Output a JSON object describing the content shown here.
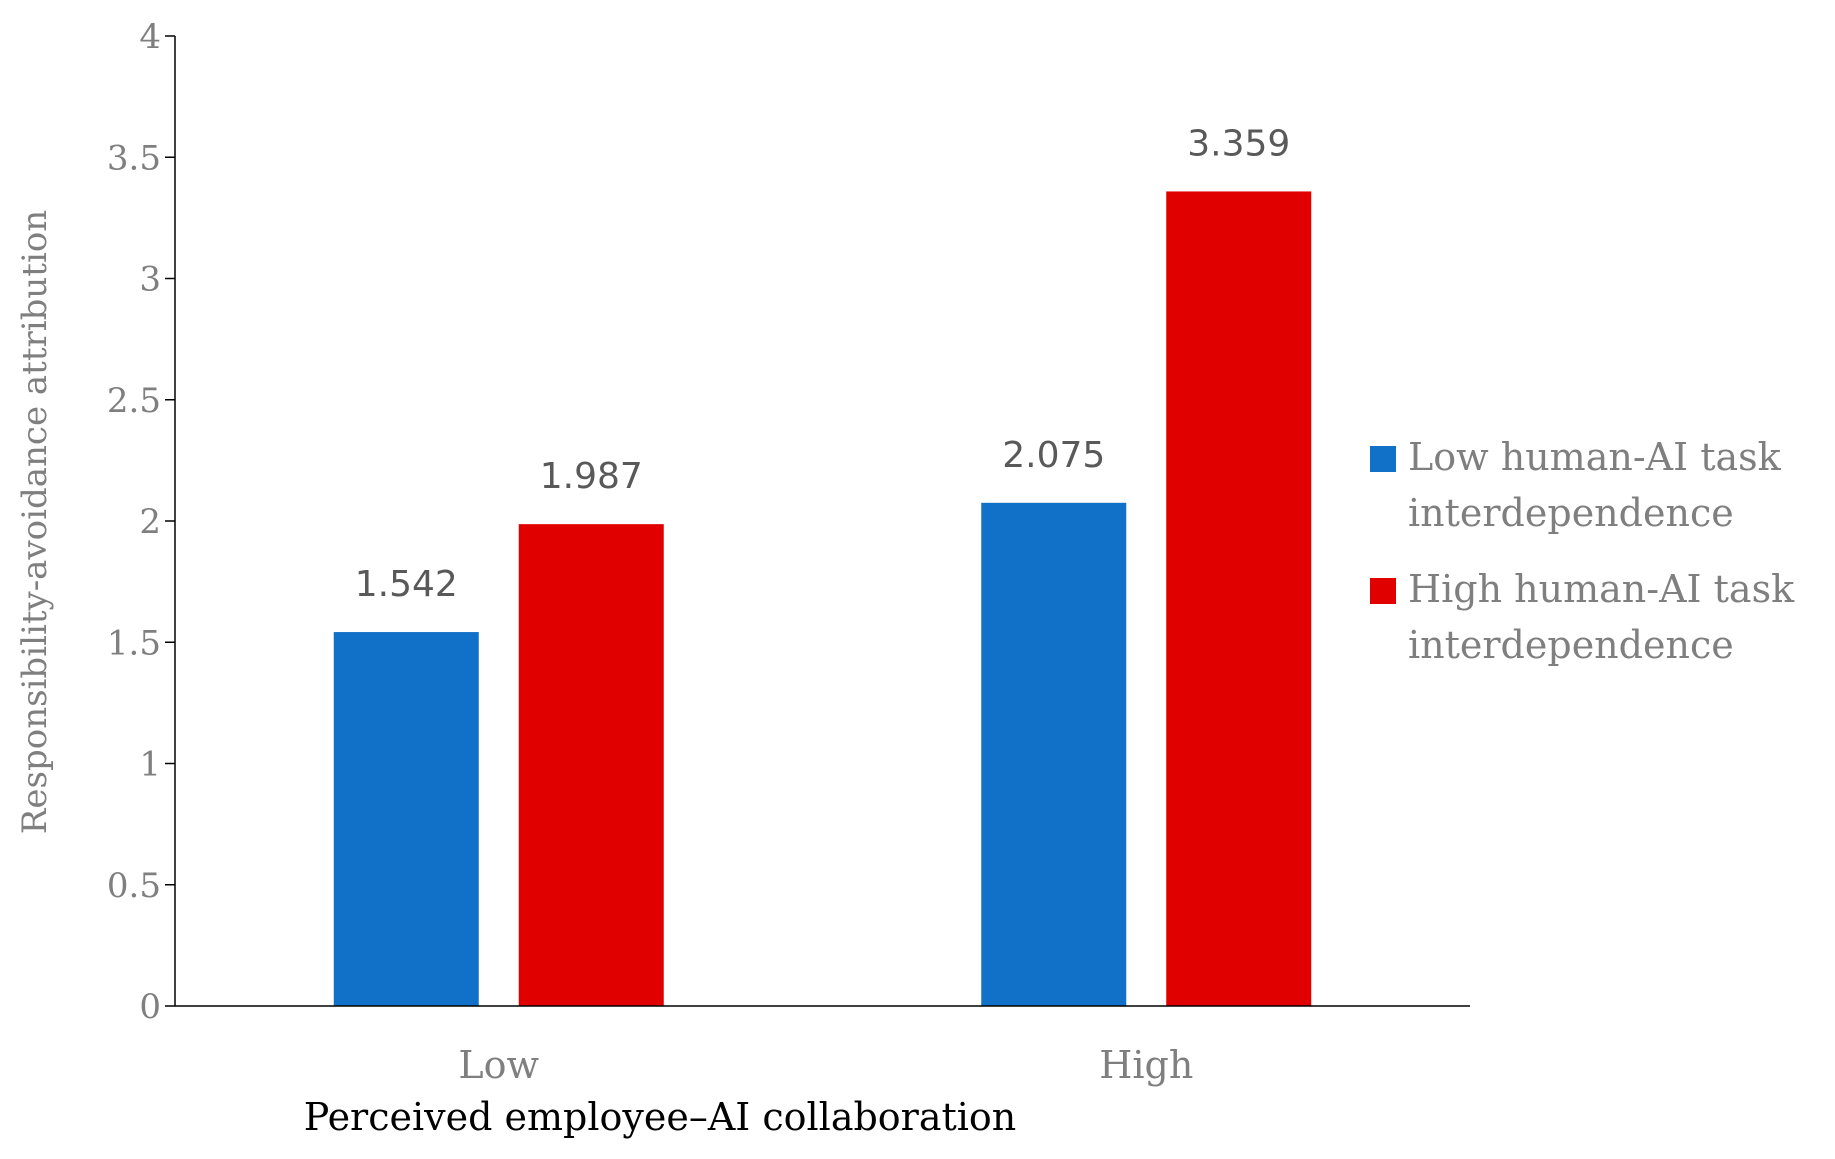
{
  "chart_data": {
    "type": "bar",
    "categories": [
      "Low",
      "High"
    ],
    "series": [
      {
        "name": "Low human-AI task interdependence",
        "name_lines": [
          "Low human-AI task",
          "interdependence"
        ],
        "values": [
          1.542,
          2.075
        ],
        "labels": [
          "1.542",
          "2.075"
        ],
        "color": "#1170c8"
      },
      {
        "name": "High human-AI task interdependence",
        "name_lines": [
          "High human-AI task",
          "interdependence"
        ],
        "values": [
          1.987,
          3.359
        ],
        "labels": [
          "1.987",
          "3.359"
        ],
        "color": "#e00000"
      }
    ],
    "xlabel": "Perceived employee–AI collaboration",
    "ylabel": "Responsibility-avoidance attribution",
    "ylim": [
      0,
      4
    ],
    "yticks": [
      0,
      0.5,
      1,
      1.5,
      2,
      2.5,
      3,
      3.5,
      4
    ],
    "ytick_labels": [
      "0",
      "0.5",
      "1",
      "1.5",
      "2",
      "2.5",
      "3",
      "3.5",
      "4"
    ],
    "grid": false,
    "legend_position": "right"
  }
}
